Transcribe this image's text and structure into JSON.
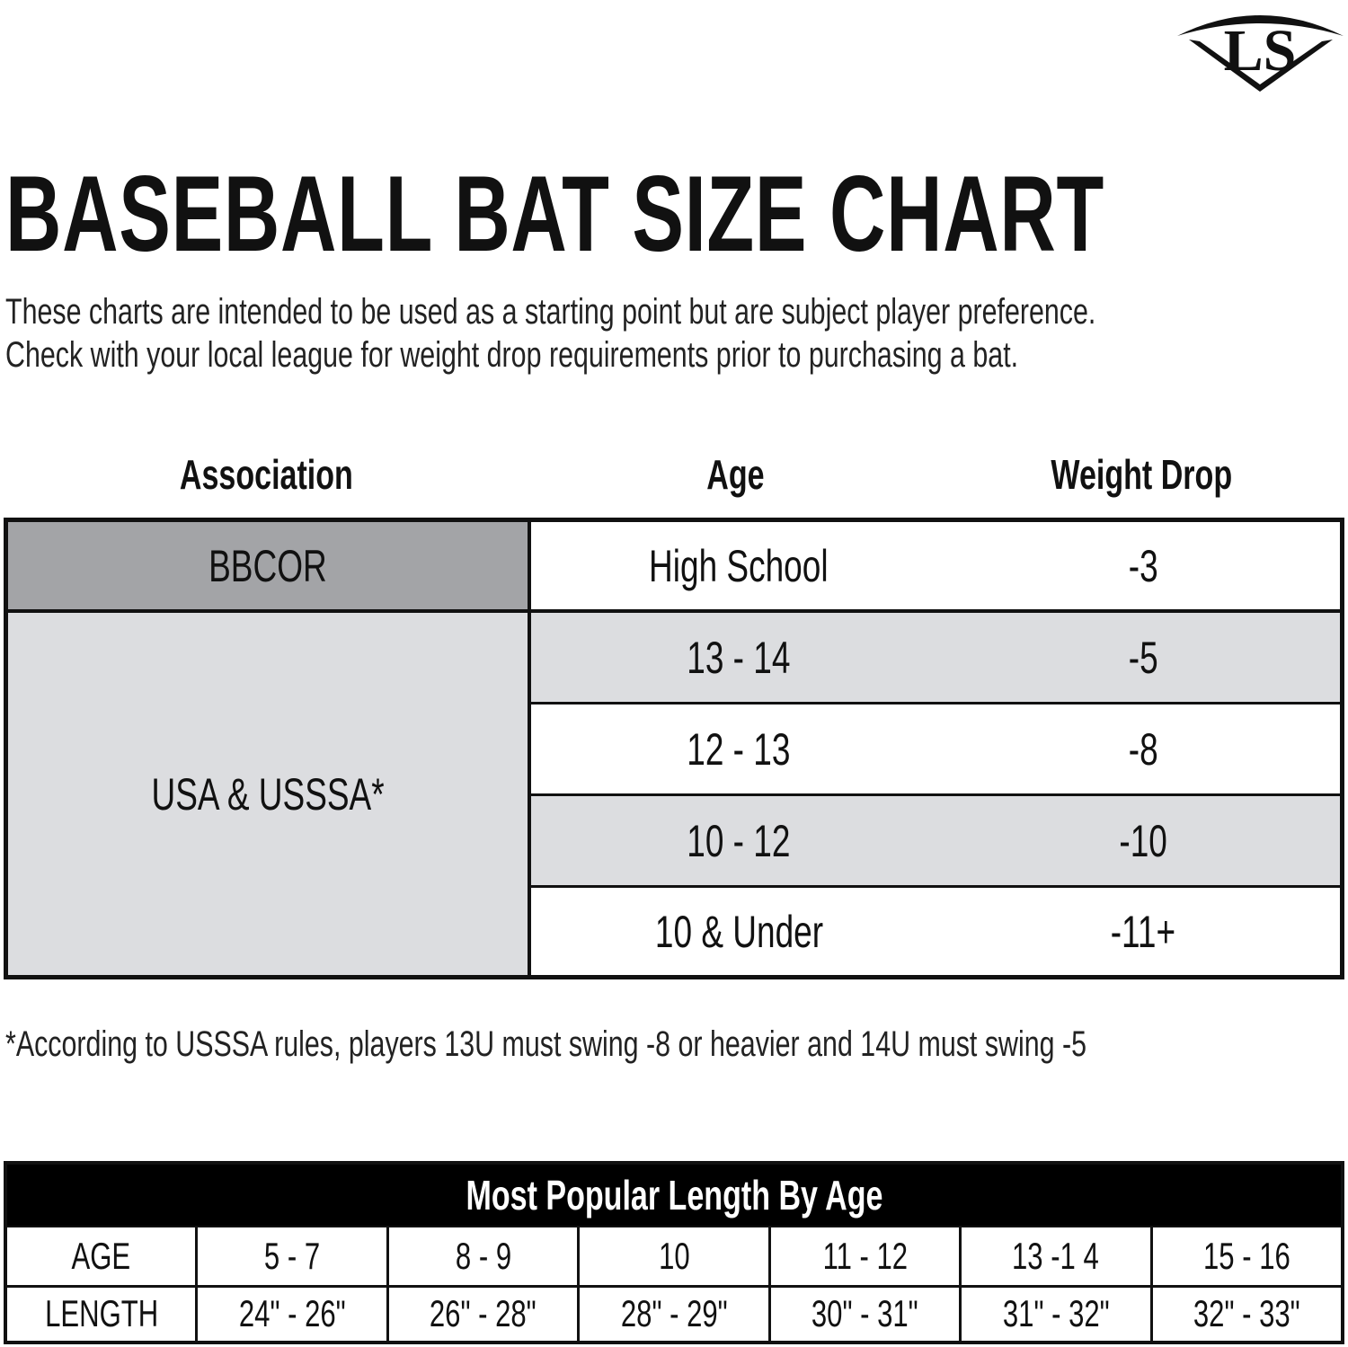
{
  "logo": {
    "text": "LS",
    "icon": "louisville-slugger-logo"
  },
  "title": "BASEBALL BAT SIZE CHART",
  "intro": [
    "These charts are intended to be used as a starting point but are subject  player preference.",
    "Check with your local league for weight drop requirements prior to purchasing a bat."
  ],
  "table": {
    "headers": [
      "Association",
      "Age",
      "Weight Drop"
    ],
    "groups": [
      {
        "association": "BBCOR",
        "rows": [
          {
            "age": "High School",
            "drop": "-3"
          }
        ]
      },
      {
        "association": "USA & USSSA*",
        "rows": [
          {
            "age": "13 - 14",
            "drop": "-5"
          },
          {
            "age": "12 - 13",
            "drop": "-8"
          },
          {
            "age": "10 - 12",
            "drop": "-10"
          },
          {
            "age": "10 & Under",
            "drop": "-11+"
          }
        ]
      }
    ]
  },
  "footnote": "*According to USSSA rules, players 13U must swing -8 or heavier  and 14U must swing -5",
  "length_table": {
    "title": "Most Popular Length By Age",
    "age_row": [
      "AGE",
      "5 - 7",
      "8 - 9",
      "10",
      "11 - 12",
      "13 -1 4",
      "15 - 16"
    ],
    "length_row": [
      "LENGTH",
      "24\" - 26\"",
      "26\" - 28\"",
      "28\" - 29\"",
      "30\" - 31\"",
      "31\" - 32\"",
      "32\" - 33\""
    ]
  },
  "colors": {
    "bbcor_bg": "#a3a4a7",
    "light_gray": "#dcdde0",
    "header_black": "#000000"
  }
}
